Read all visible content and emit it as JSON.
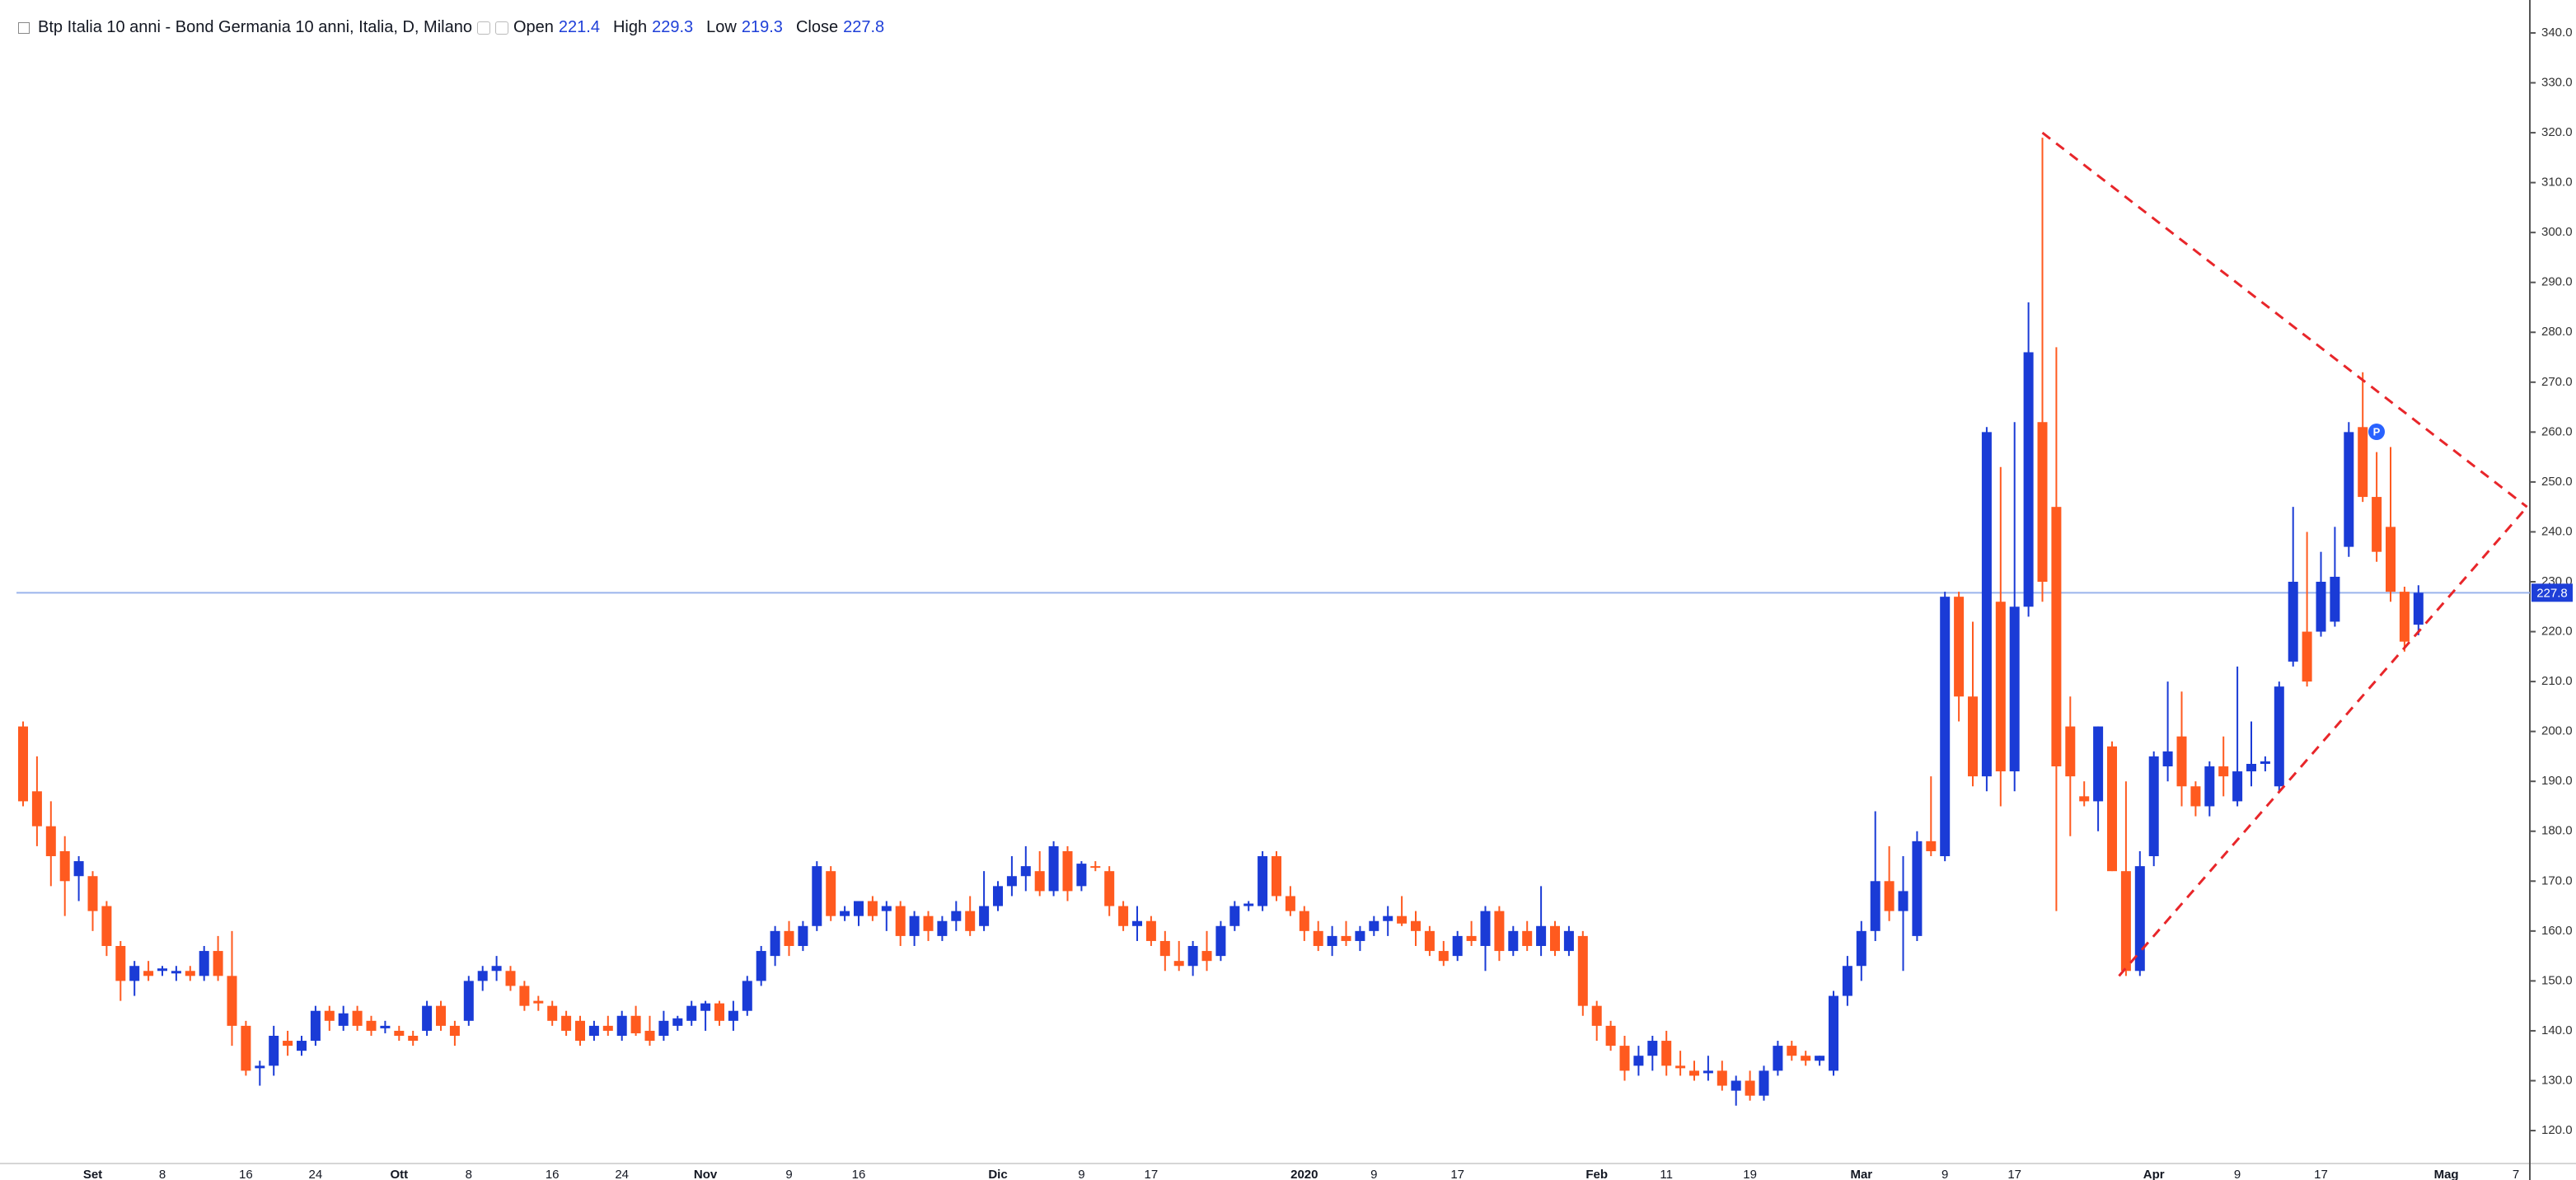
{
  "chart_data": {
    "type": "candlestick",
    "title": "Btp Italia 10 anni - Bond Germania 10 anni, Italia, D, Milano",
    "ohlc_labels": [
      "Open",
      "High",
      "Low",
      "Close"
    ],
    "categories": [
      null,
      null,
      null,
      null,
      null,
      "Set",
      null,
      null,
      null,
      null,
      "8",
      null,
      null,
      null,
      null,
      null,
      "16",
      null,
      null,
      null,
      null,
      "24",
      null,
      null,
      null,
      null,
      null,
      "Ott",
      null,
      null,
      null,
      null,
      "8",
      null,
      null,
      null,
      null,
      null,
      "16",
      null,
      null,
      null,
      null,
      "24",
      null,
      null,
      null,
      null,
      null,
      "Nov",
      null,
      null,
      null,
      null,
      null,
      "9",
      null,
      null,
      null,
      null,
      "16",
      null,
      null,
      null,
      null,
      null,
      null,
      null,
      null,
      null,
      "Dic",
      null,
      null,
      null,
      null,
      null,
      "9",
      null,
      null,
      null,
      null,
      "17",
      null,
      null,
      null,
      null,
      null,
      null,
      null,
      null,
      null,
      null,
      "2020",
      null,
      null,
      null,
      null,
      "9",
      null,
      null,
      null,
      null,
      null,
      "17",
      null,
      null,
      null,
      null,
      null,
      null,
      null,
      null,
      null,
      "Feb",
      null,
      null,
      null,
      null,
      "11",
      null,
      null,
      null,
      null,
      null,
      "19",
      null,
      null,
      null,
      null,
      null,
      null,
      null,
      "Mar",
      null,
      null,
      null,
      null,
      null,
      "9",
      null,
      null,
      null,
      null,
      "17",
      null,
      null,
      null,
      null,
      null,
      null,
      null,
      null,
      null,
      "Apr",
      null,
      null,
      null,
      null,
      null,
      "9",
      null,
      null,
      null,
      null,
      null,
      "17",
      null,
      null,
      null,
      null,
      null,
      null,
      null,
      null,
      "Mag",
      null,
      null,
      null,
      null,
      "7"
    ],
    "open": [
      201,
      188,
      181,
      176,
      171,
      171,
      165,
      157,
      150,
      152,
      152,
      151.5,
      152,
      151,
      156,
      151,
      141,
      132.5,
      133,
      138,
      136,
      138,
      144,
      141,
      144,
      142,
      140.5,
      140,
      139,
      140,
      145,
      141,
      142,
      150,
      152,
      152,
      149,
      146,
      145,
      143,
      142,
      139,
      141,
      139,
      143,
      140,
      139,
      141,
      142,
      144,
      145.5,
      142,
      144,
      150,
      155,
      160,
      157,
      161,
      172,
      163,
      163,
      166,
      164,
      165,
      159,
      163,
      159,
      162,
      164,
      161,
      165,
      169,
      171,
      172,
      168,
      176,
      169,
      173,
      172,
      165,
      161,
      162,
      158,
      154,
      153,
      156,
      155,
      161,
      165,
      165,
      175,
      167,
      164,
      160,
      157,
      159,
      158,
      160,
      162,
      163,
      162,
      160,
      156,
      155,
      159,
      157,
      164,
      156,
      160,
      157,
      161,
      156,
      159,
      145,
      141,
      137,
      133,
      135,
      138,
      133,
      132,
      131.5,
      132,
      128,
      130,
      127,
      132,
      137,
      135,
      134,
      132,
      147,
      153,
      160,
      170,
      164,
      159,
      178,
      175,
      227,
      207,
      191,
      226,
      192,
      225,
      262,
      245,
      201,
      187,
      186,
      197,
      172,
      152,
      175,
      193,
      199,
      189,
      185,
      193,
      186,
      192,
      193.5,
      189,
      214,
      220,
      220,
      222,
      237,
      261,
      247,
      241,
      228,
      221.4,
      null,
      null,
      null,
      null,
      null,
      null,
      null
    ],
    "high": [
      202,
      195,
      186,
      179,
      175,
      172,
      166,
      158,
      154,
      154,
      153,
      153,
      153,
      157,
      159,
      160,
      142,
      134,
      141,
      140,
      139,
      145,
      145,
      145,
      145,
      143,
      142,
      141,
      140,
      146,
      146,
      142,
      151,
      153,
      155,
      153,
      150,
      147,
      146,
      144,
      143,
      142,
      143,
      144,
      145,
      143,
      144,
      143,
      146,
      146,
      146,
      146,
      151,
      157,
      161,
      162,
      162,
      174,
      173,
      165,
      166,
      167,
      166,
      166,
      164,
      164,
      163,
      166,
      167,
      172,
      170,
      175,
      177,
      176,
      178,
      177,
      174,
      174,
      173,
      166,
      165,
      163,
      160,
      158,
      158,
      160,
      162,
      166,
      166,
      176,
      176,
      169,
      165,
      162,
      161,
      162,
      161,
      163,
      165,
      167,
      164,
      161,
      158,
      160,
      162,
      165,
      165,
      161,
      162,
      169,
      162,
      161,
      160,
      146,
      142,
      139,
      137,
      139,
      140,
      136,
      134,
      135,
      134,
      131,
      132,
      133,
      138,
      138,
      136,
      135,
      148,
      155,
      162,
      184,
      177,
      175,
      180,
      191,
      228,
      228,
      222,
      261,
      253,
      262,
      286,
      319,
      277,
      207,
      190,
      201,
      198,
      190,
      176,
      196,
      210,
      208,
      190,
      194,
      199,
      213,
      202,
      195,
      210,
      245,
      240,
      236,
      241,
      262,
      272,
      256,
      257,
      229,
      229.3,
      null,
      null,
      null,
      null,
      null,
      null,
      null
    ],
    "low": [
      185,
      177,
      169,
      163,
      166,
      160,
      155,
      146,
      147,
      150,
      151,
      150,
      150,
      150,
      150,
      137,
      131,
      129,
      131,
      135,
      135,
      137,
      140,
      140,
      140,
      139,
      139.5,
      138,
      137,
      139,
      140,
      137,
      141,
      148,
      150,
      148,
      144,
      144,
      141,
      139,
      137,
      138,
      139,
      138,
      139,
      137,
      138,
      140,
      141,
      140,
      141,
      140,
      143,
      149,
      153,
      155,
      156,
      160,
      162,
      162,
      161,
      162,
      160,
      157,
      157,
      158,
      158,
      160,
      159,
      160,
      164,
      167,
      168,
      167,
      167,
      166,
      168,
      172,
      163,
      160,
      158,
      157,
      152,
      152,
      151,
      152,
      154,
      160,
      164,
      164,
      166,
      163,
      158,
      156,
      155,
      157,
      156,
      159,
      159,
      161,
      157,
      155,
      153,
      154,
      157,
      152,
      154,
      155,
      156,
      155,
      155,
      155,
      143,
      138,
      136,
      130,
      131,
      132,
      131,
      131,
      130,
      130,
      128,
      125,
      126,
      126,
      131,
      134,
      133,
      133,
      131,
      145,
      150,
      158,
      162,
      152,
      158,
      175,
      174,
      202,
      189,
      188,
      185,
      188,
      223,
      226,
      164,
      179,
      185,
      180,
      172,
      151,
      151,
      173,
      190,
      185,
      183,
      183,
      187,
      185,
      189,
      192,
      188,
      213,
      209,
      219,
      221,
      235,
      246,
      234,
      226,
      216,
      219.3,
      null,
      null,
      null,
      null,
      null,
      null,
      null
    ],
    "close": [
      186,
      181,
      175,
      170,
      174,
      164,
      157,
      150,
      153,
      151,
      152.5,
      152,
      151,
      156,
      151,
      141,
      132,
      133,
      139,
      137,
      138,
      144,
      142,
      143.5,
      141,
      140,
      141,
      139,
      138,
      145,
      141,
      139,
      150,
      152,
      153,
      149,
      145,
      145.5,
      142,
      140,
      138,
      141,
      140,
      143,
      139.5,
      138,
      142,
      142.5,
      145,
      145.5,
      142,
      144,
      150,
      156,
      160,
      157,
      161,
      173,
      163,
      164,
      166,
      163,
      165,
      159,
      163,
      160,
      162,
      164,
      160,
      165,
      169,
      171,
      173,
      168,
      177,
      168,
      173.5,
      172.8,
      165,
      161,
      162,
      158,
      155,
      153,
      157,
      154,
      161,
      165,
      165.5,
      175,
      167,
      164,
      160,
      157,
      159,
      158,
      160,
      162,
      163,
      161.5,
      160,
      156,
      154,
      159,
      158,
      164,
      156,
      160,
      157,
      161,
      156,
      160,
      145,
      141,
      137,
      132,
      135,
      138,
      133,
      132.5,
      131,
      132,
      129,
      130,
      127,
      132,
      137,
      135,
      134,
      135,
      147,
      153,
      160,
      170,
      164,
      168,
      178,
      176,
      227,
      207,
      191,
      260,
      192,
      225,
      276,
      230,
      193,
      191,
      186,
      201,
      172,
      152,
      173,
      195,
      196,
      189,
      185,
      193,
      191,
      192,
      193.5,
      194,
      209,
      230,
      210,
      230,
      231,
      260,
      247,
      236,
      228,
      218,
      227.8,
      null,
      null,
      null,
      null,
      null,
      null,
      null
    ],
    "up_color": "#1a3bd6",
    "down_color": "#ff5a1f",
    "last_price_line": true,
    "last_price_color": "#9bb5ec",
    "ylim": [
      113.4,
      346.6
    ],
    "yticks": [
      {
        "value": 120,
        "label": "120.0"
      },
      {
        "value": 130,
        "label": "130.0"
      },
      {
        "value": 140,
        "label": "140.0"
      },
      {
        "value": 150,
        "label": "150.0"
      },
      {
        "value": 160,
        "label": "160.0"
      },
      {
        "value": 170,
        "label": "170.0"
      },
      {
        "value": 180,
        "label": "180.0"
      },
      {
        "value": 190,
        "label": "190.0"
      },
      {
        "value": 200,
        "label": "200.0"
      },
      {
        "value": 210,
        "label": "210.0"
      },
      {
        "value": 220,
        "label": "220.0"
      },
      {
        "value": 230,
        "label": "230.0"
      },
      {
        "value": 240,
        "label": "240.0"
      },
      {
        "value": 250,
        "label": "250.0"
      },
      {
        "value": 260,
        "label": "260.0"
      },
      {
        "value": 270,
        "label": "270.0"
      },
      {
        "value": 280,
        "label": "280.0"
      },
      {
        "value": 290,
        "label": "290.0"
      },
      {
        "value": 300,
        "label": "300.0"
      },
      {
        "value": 310,
        "label": "310.0"
      },
      {
        "value": 320,
        "label": "320.0"
      },
      {
        "value": 330,
        "label": "330.0"
      },
      {
        "value": 340,
        "label": "340.0"
      }
    ],
    "trendlines": [
      {
        "x": [
          145,
          179.8
        ],
        "y": [
          320,
          245
        ]
      },
      {
        "x": [
          150.5,
          179.8
        ],
        "y": [
          151,
          245
        ]
      }
    ],
    "trendline_color": "#e8262a",
    "marker_label": "P"
  }
}
